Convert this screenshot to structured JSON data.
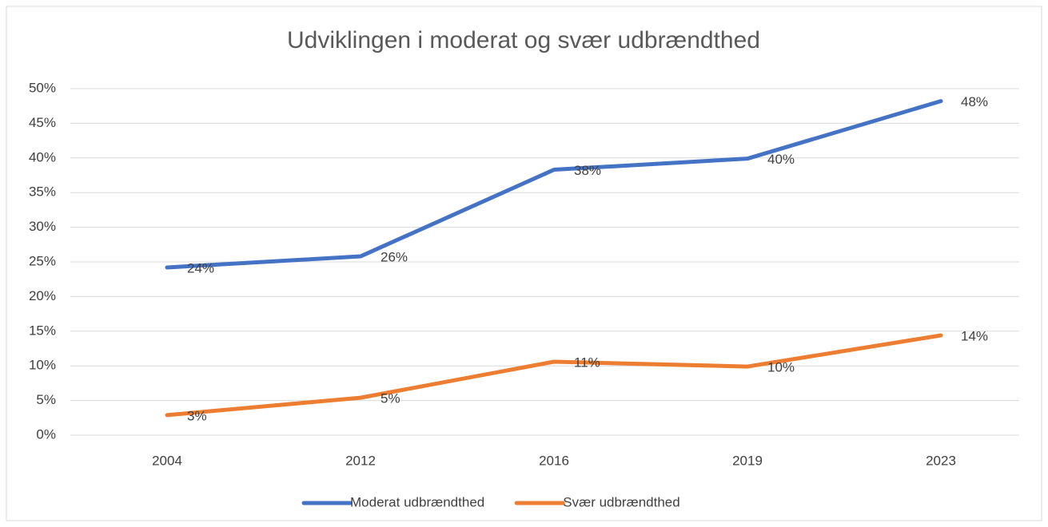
{
  "chart_data": {
    "type": "line",
    "title": "Udviklingen i moderat og svær udbrændthed",
    "categories": [
      "2004",
      "2012",
      "2016",
      "2019",
      "2023"
    ],
    "series": [
      {
        "name": "Moderat udbrændthed",
        "color": "#4472c4",
        "values": [
          24.2,
          25.8,
          38.3,
          39.9,
          48.2
        ],
        "value_labels": [
          "24%",
          "26%",
          "38%",
          "40%",
          "48%"
        ]
      },
      {
        "name": "Svær udbrændthed",
        "color": "#ed7d31",
        "values": [
          2.9,
          5.4,
          10.6,
          9.9,
          14.4
        ],
        "value_labels": [
          "3%",
          "5%",
          "11%",
          "10%",
          "14%"
        ]
      }
    ],
    "ylim": [
      0,
      50
    ],
    "yticks": [
      {
        "value": 0,
        "label": "0%"
      },
      {
        "value": 5,
        "label": "5%"
      },
      {
        "value": 10,
        "label": "10%"
      },
      {
        "value": 15,
        "label": "15%"
      },
      {
        "value": 20,
        "label": "20%"
      },
      {
        "value": 25,
        "label": "25%"
      },
      {
        "value": 30,
        "label": "30%"
      },
      {
        "value": 35,
        "label": "35%"
      },
      {
        "value": 40,
        "label": "40%"
      },
      {
        "value": 45,
        "label": "45%"
      },
      {
        "value": 50,
        "label": "50%"
      }
    ],
    "grid": true,
    "legend": "bottom"
  }
}
